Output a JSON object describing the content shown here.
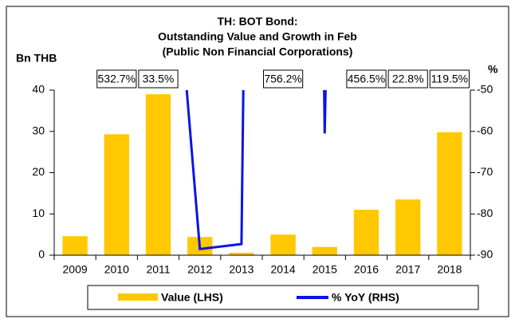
{
  "chart_data": {
    "type": "bar",
    "title": [
      "TH: BOT Bond:",
      "Outstanding Value and Growth in Feb",
      "(Public Non Financial Corporations)"
    ],
    "ylabel": "Bn THB",
    "y2label": "%",
    "categories": [
      "2009",
      "2010",
      "2011",
      "2012",
      "2013",
      "2014",
      "2015",
      "2016",
      "2017",
      "2018"
    ],
    "series": [
      {
        "name": "Value (LHS)",
        "type": "bar",
        "color": "#ffc800",
        "values": [
          4.6,
          29.3,
          39.0,
          4.4,
          0.6,
          5.0,
          2.0,
          11.0,
          13.5,
          29.8
        ]
      },
      {
        "name": "% YoY (RHS)",
        "type": "line",
        "axis": "y2",
        "color": "#0a14e6",
        "values": [
          null,
          532.7,
          33.5,
          -88.5,
          -87.3,
          756.2,
          -60.5,
          456.5,
          22.8,
          119.5
        ],
        "value_labels": [
          null,
          "532.7%",
          "33.5%",
          null,
          null,
          "756.2%",
          null,
          "456.5%",
          "22.8%",
          "119.5%"
        ]
      }
    ],
    "ylim": [
      0,
      40
    ],
    "yticks": [
      0,
      10,
      20,
      30,
      40
    ],
    "y2lim": [
      -90,
      -50
    ],
    "y2ticks": [
      -90,
      -80,
      -70,
      -60,
      -50
    ],
    "legend": "bottom"
  }
}
